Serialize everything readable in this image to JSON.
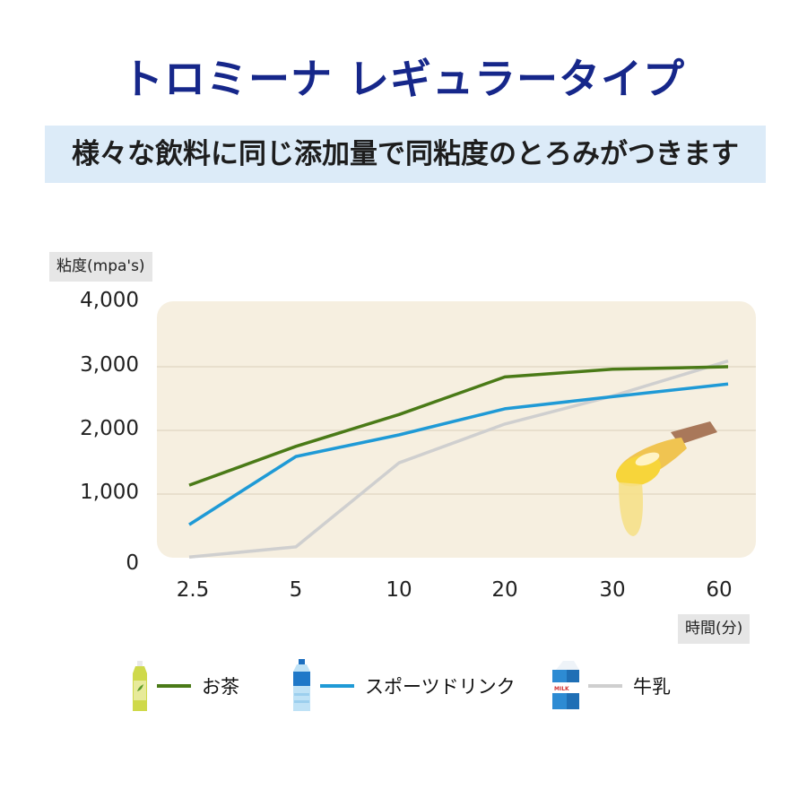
{
  "header": {
    "title": "トロミーナ レギュラータイプ",
    "subtitle": "様々な飲料に同じ添加量で同粘度のとろみがつきます"
  },
  "chart_data": {
    "type": "line",
    "title": "トロミーナ レギュラータイプ",
    "subtitle": "様々な飲料に同じ添加量で同粘度のとろみがつきます",
    "xlabel": "時間(分)",
    "ylabel": "粘度(mpa's)",
    "categories": [
      "2.5",
      "5",
      "10",
      "20",
      "30",
      "60"
    ],
    "yticks": [
      "0",
      "1,000",
      "2,000",
      "3,000",
      "4,000"
    ],
    "ylim": [
      0,
      4000
    ],
    "grid": true,
    "legend_position": "bottom",
    "series": [
      {
        "name": "お茶",
        "color": "#4a7a17",
        "values": [
          1140,
          1750,
          2250,
          2840,
          2960,
          3000
        ]
      },
      {
        "name": "スポーツドリンク",
        "color": "#1f9ad6",
        "values": [
          520,
          1590,
          1930,
          2340,
          2530,
          2730
        ]
      },
      {
        "name": "牛乳",
        "color": "#cfcfcf",
        "values": [
          10,
          170,
          1490,
          2100,
          2540,
          3090
        ]
      }
    ]
  },
  "legend": [
    {
      "label": "お茶",
      "icon": "tea-bottle-icon"
    },
    {
      "label": "スポーツドリンク",
      "icon": "sports-drink-bottle-icon"
    },
    {
      "label": "牛乳",
      "icon": "milk-carton-icon"
    }
  ],
  "illustration": "honey-spoon"
}
